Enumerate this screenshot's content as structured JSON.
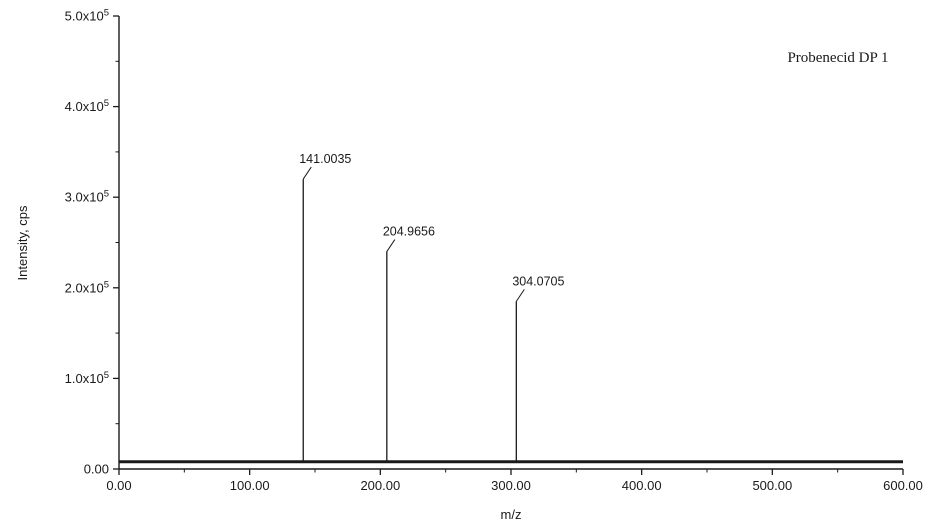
{
  "chart_data": {
    "type": "bar",
    "subtype": "mass-spectrum-stick",
    "title": "",
    "annotation": "Probenecid DP 1",
    "xlabel": "m/z",
    "ylabel": "Intensity, cps",
    "xlim": [
      0,
      600
    ],
    "ylim": [
      0,
      500000
    ],
    "x_ticks": [
      0,
      100,
      200,
      300,
      400,
      500,
      600
    ],
    "x_tick_labels": [
      "0.00",
      "100.00",
      "200.00",
      "300.00",
      "400.00",
      "500.00",
      "600.00"
    ],
    "x_minor_step": 50,
    "y_ticks": [
      0,
      100000,
      200000,
      300000,
      400000,
      500000
    ],
    "y_tick_labels": [
      "0.00",
      "1.0x10^5",
      "2.0x10^5",
      "3.0x10^5",
      "4.0x10^5",
      "5.0x10^5"
    ],
    "y_minor_step": 50000,
    "baseline_intensity": 8000,
    "grid": false,
    "legend": "none",
    "axis_color": "#1a1a1a",
    "peaks": [
      {
        "mz": 141.0035,
        "intensity": 320000,
        "label": "141.0035"
      },
      {
        "mz": 204.9656,
        "intensity": 240000,
        "label": "204.9656"
      },
      {
        "mz": 304.0705,
        "intensity": 185000,
        "label": "304.0705"
      }
    ]
  }
}
